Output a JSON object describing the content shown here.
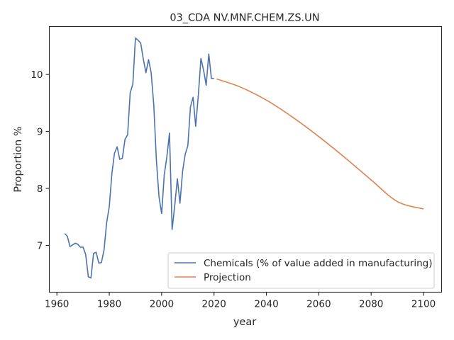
{
  "chart_data": {
    "type": "line",
    "title": "03_CDA NV.MNF.CHEM.ZS.UN",
    "xlabel": "year",
    "ylabel": "Proportion %",
    "xlim": [
      1957.1,
      2106.9
    ],
    "ylim": [
      6.18,
      10.84
    ],
    "xticks": [
      1960,
      1980,
      2000,
      2020,
      2040,
      2060,
      2080,
      2100
    ],
    "yticks": [
      7,
      8,
      9,
      10
    ],
    "grid": false,
    "legend_position": "lower-right",
    "series": [
      {
        "name": "Chemicals (% of value added in manufacturing)",
        "color": "#4c72b0",
        "x": [
          1963,
          1964,
          1965,
          1966,
          1967,
          1968,
          1969,
          1970,
          1971,
          1972,
          1973,
          1974,
          1975,
          1976,
          1977,
          1978,
          1979,
          1980,
          1981,
          1982,
          1983,
          1984,
          1985,
          1986,
          1987,
          1988,
          1989,
          1990,
          1991,
          1992,
          1993,
          1994,
          1995,
          1996,
          1997,
          1998,
          1999,
          2000,
          2001,
          2002,
          2003,
          2004,
          2005,
          2006,
          2007,
          2008,
          2009,
          2010,
          2011,
          2012,
          2013,
          2014,
          2015,
          2016,
          2017,
          2018,
          2019,
          2020
        ],
        "y": [
          7.21,
          7.16,
          6.98,
          7.01,
          7.04,
          7.02,
          6.97,
          6.97,
          6.84,
          6.45,
          6.43,
          6.86,
          6.88,
          6.69,
          6.7,
          6.92,
          7.4,
          7.68,
          8.26,
          8.62,
          8.73,
          8.51,
          8.53,
          8.86,
          8.94,
          9.68,
          9.83,
          10.64,
          10.6,
          10.55,
          10.27,
          10.03,
          10.26,
          10.03,
          9.46,
          8.49,
          7.85,
          7.56,
          8.24,
          8.56,
          8.97,
          7.28,
          7.7,
          8.17,
          7.74,
          8.3,
          8.6,
          8.75,
          9.43,
          9.6,
          9.09,
          9.63,
          10.28,
          10.08,
          9.81,
          10.36,
          9.93,
          9.93
        ]
      },
      {
        "name": "Projection",
        "color": "#dd8452",
        "x": [
          2021,
          2030,
          2040,
          2050,
          2060,
          2070,
          2080,
          2090,
          2100
        ],
        "y": [
          9.92,
          9.78,
          9.55,
          9.25,
          8.91,
          8.54,
          8.15,
          7.77,
          7.64
        ]
      }
    ]
  }
}
